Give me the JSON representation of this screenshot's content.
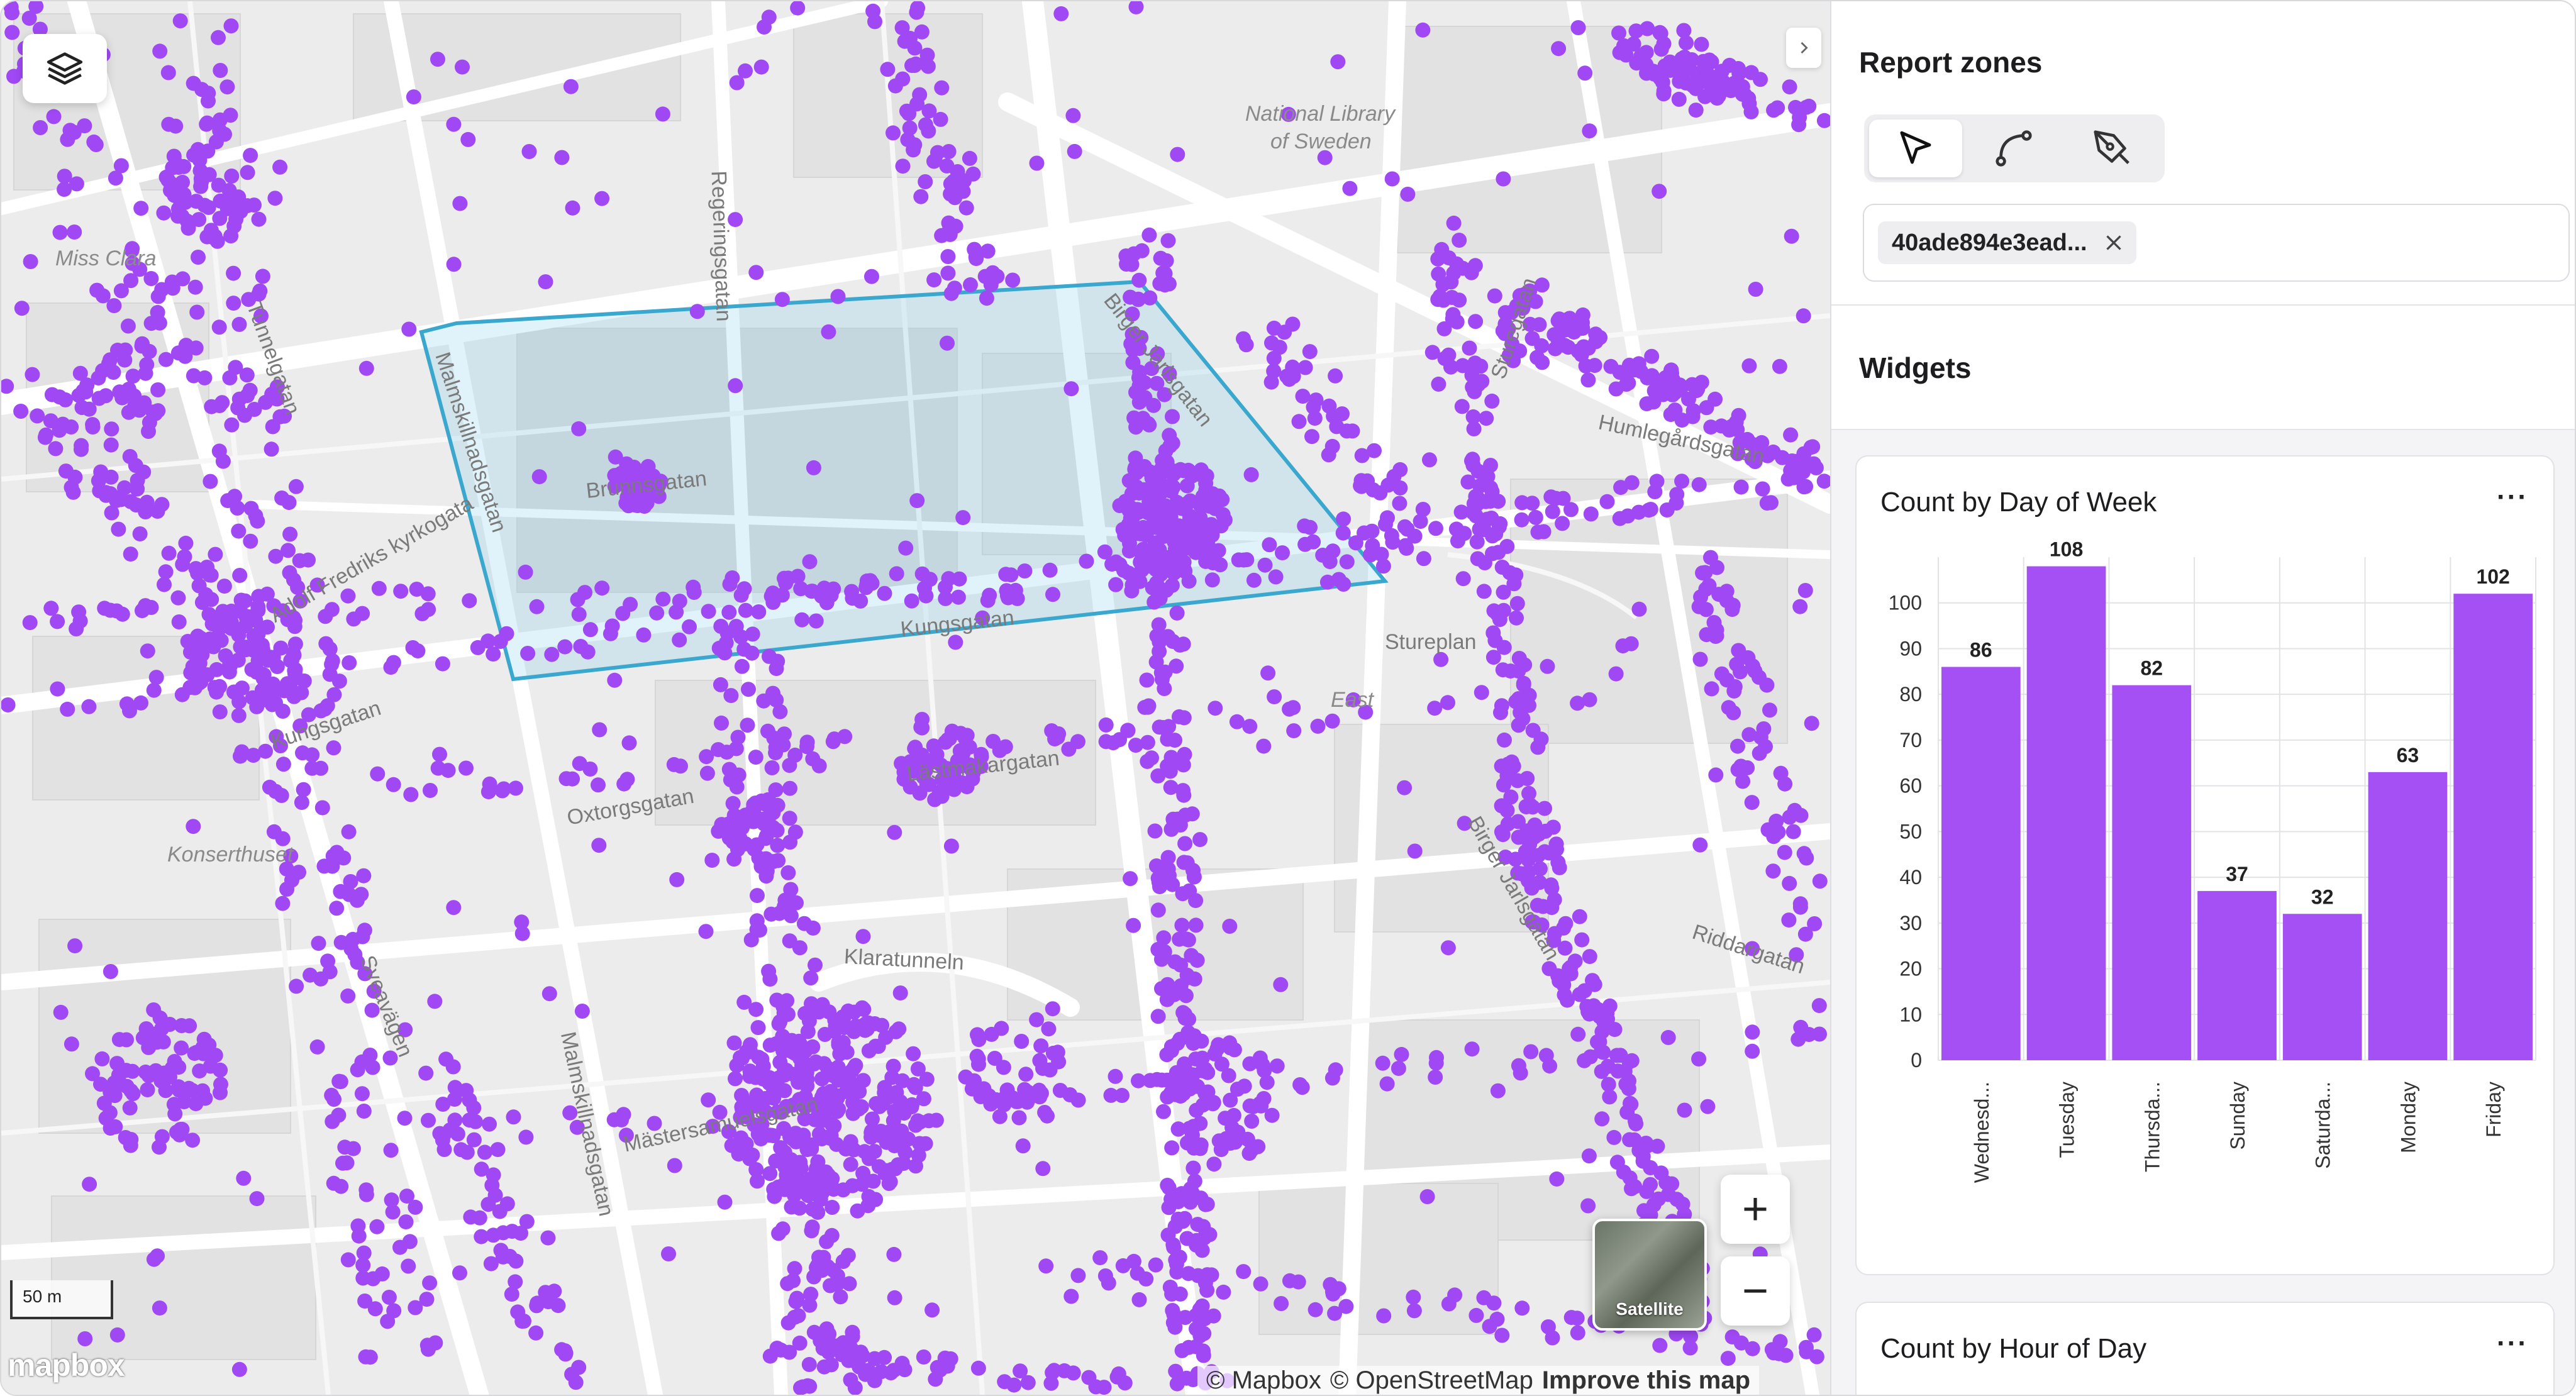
{
  "map": {
    "place_labels": [
      {
        "text": "National Library",
        "x": 1978,
        "y": 160
      },
      {
        "text": "of Sweden",
        "x": 2018,
        "y": 204
      },
      {
        "text": "Miss Clara",
        "x": 86,
        "y": 390
      },
      {
        "text": "Konserthuset",
        "x": 264,
        "y": 1338
      },
      {
        "text": "East",
        "x": 2114,
        "y": 1092
      }
    ],
    "street_labels": [
      {
        "text": "Regeringsgatan",
        "x": 1140,
        "y": 250,
        "angle": 88
      },
      {
        "text": "Malmskillnadsgatan",
        "x": 700,
        "y": 540,
        "angle": 72
      },
      {
        "text": "Brunnsgatan",
        "x": 930,
        "y": 760,
        "angle": -6
      },
      {
        "text": "Birger Jarlsgatan",
        "x": 1760,
        "y": 450,
        "angle": 52
      },
      {
        "text": "Kungsgatan",
        "x": 1430,
        "y": 980,
        "angle": -6
      },
      {
        "text": "Lästmakargatan",
        "x": 1440,
        "y": 1210,
        "angle": -6
      },
      {
        "text": "Oxtorgsgatan",
        "x": 900,
        "y": 1280,
        "angle": -10
      },
      {
        "text": "Klaratunneln",
        "x": 1340,
        "y": 1500,
        "angle": 3
      },
      {
        "text": "Mästersamuelsgatan",
        "x": 990,
        "y": 1800,
        "angle": -12
      },
      {
        "text": "Malmskillnadsgatan",
        "x": 900,
        "y": 1620,
        "angle": 78
      },
      {
        "text": "Sveavägen",
        "x": 580,
        "y": 1500,
        "angle": 68
      },
      {
        "text": "Kungsgatan",
        "x": 430,
        "y": 1160,
        "angle": -18
      },
      {
        "text": "Adolf Fredriks kyrkogata",
        "x": 430,
        "y": 960,
        "angle": -30
      },
      {
        "text": "Tunnelgatan",
        "x": 400,
        "y": 460,
        "angle": 70
      },
      {
        "text": "Humlegårdsgatan",
        "x": 2540,
        "y": 650,
        "angle": 12
      },
      {
        "text": "Stureplan",
        "x": 2200,
        "y": 1000,
        "angle": 0
      },
      {
        "text": "Riddargatan",
        "x": 2690,
        "y": 1460,
        "angle": 18
      },
      {
        "text": "Sturegatan",
        "x": 2380,
        "y": 580,
        "angle": -72
      },
      {
        "text": "Birger Jarlsgatan",
        "x": 2340,
        "y": 1280,
        "angle": 60
      }
    ],
    "scale_label": "50 m",
    "satellite_label": "Satellite",
    "zoom_in_label": "+",
    "zoom_out_label": "−",
    "attribution": {
      "mapbox": "© Mapbox",
      "osm": "© OpenStreetMap",
      "improve": "Improve this map"
    },
    "logo_text": "mapbox",
    "point_color": "#9f48f4",
    "zone_color": "#3aa7cf"
  },
  "sidebar": {
    "zones_title": "Report zones",
    "tools": [
      {
        "name": "select-tool",
        "icon": "cursor-arrow-icon",
        "active": true
      },
      {
        "name": "line-tool",
        "icon": "curve-path-icon",
        "active": false
      },
      {
        "name": "draw-tool",
        "icon": "pen-nib-icon",
        "active": false
      }
    ],
    "zone_chip_label": "40ade894e3ead...",
    "widgets_title": "Widgets",
    "widgets": [
      {
        "title": "Count by Day of Week",
        "menu": "···"
      },
      {
        "title": "Count by Hour of Day",
        "menu": "···"
      }
    ]
  },
  "chart_data": {
    "type": "bar",
    "title": "Count by Day of Week",
    "categories": [
      "Wednesd...",
      "Tuesday",
      "Thursda...",
      "Sunday",
      "Saturda...",
      "Monday",
      "Friday"
    ],
    "values": [
      86,
      108,
      82,
      37,
      32,
      63,
      102
    ],
    "ylim": [
      0,
      110
    ],
    "yticks": [
      0,
      10,
      20,
      30,
      40,
      50,
      60,
      70,
      80,
      90,
      100
    ],
    "grid": true,
    "color": "#a550f5"
  }
}
